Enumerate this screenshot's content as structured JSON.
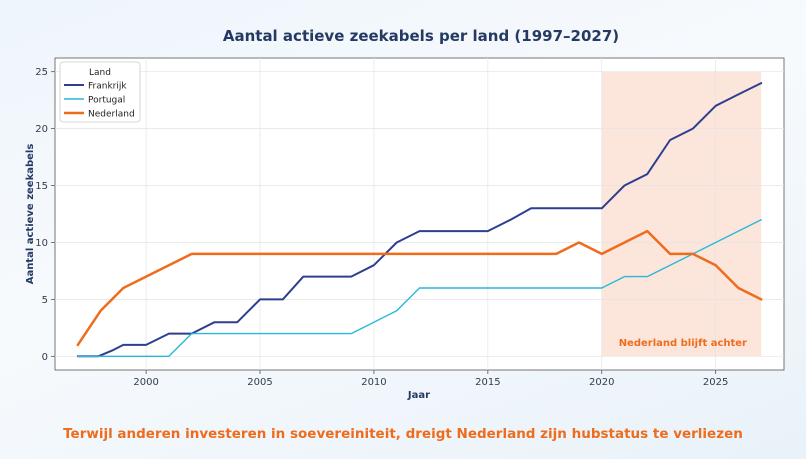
{
  "chart_data": {
    "type": "line",
    "title": "Aantal actieve zeekabels per land (1997–2027)",
    "xlabel": "Jaar",
    "ylabel": "Aantal actieve zeekabels",
    "xlim": [
      1996,
      2028
    ],
    "ylim": [
      -1.2,
      26.2
    ],
    "x_ticks": [
      2000,
      2005,
      2010,
      2015,
      2020,
      2025
    ],
    "y_ticks": [
      0,
      5,
      10,
      15,
      20,
      25
    ],
    "grid": true,
    "legend": {
      "title": "Land",
      "placement": "top-left"
    },
    "series": [
      {
        "name": "Frankrijk",
        "color": "#2e3f8f",
        "x": [
          1997,
          1997.9,
          1998.5,
          1999,
          2000,
          2001,
          2002,
          2003,
          2004,
          2004.5,
          2005,
          2006,
          2006.9,
          2007,
          2009,
          2010,
          2011,
          2012,
          2015,
          2016,
          2016.9,
          2020,
          2020.5,
          2021,
          2022,
          2023,
          2024,
          2025,
          2025.5,
          2026,
          2027
        ],
        "y": [
          0,
          0,
          0.5,
          1,
          1,
          2,
          2,
          3,
          3,
          4,
          5,
          5,
          7,
          7,
          7,
          8,
          10,
          11,
          11,
          12,
          13,
          13,
          14,
          15,
          16,
          19,
          20,
          22,
          22.5,
          23,
          24
        ]
      },
      {
        "name": "Portugal",
        "color": "#29b8d8",
        "x": [
          1997,
          1998,
          2001,
          2001.5,
          2002,
          2003,
          2009,
          2010,
          2011,
          2011.5,
          2012,
          2015,
          2020,
          2021,
          2022,
          2023,
          2024,
          2025,
          2026,
          2027
        ],
        "y": [
          0,
          0,
          0,
          1,
          2,
          2,
          2,
          3,
          4,
          5,
          6,
          6,
          6,
          7,
          7,
          8,
          9,
          10,
          11,
          12
        ]
      },
      {
        "name": "Nederland",
        "color": "#ee6c1c",
        "x": [
          1997,
          1998,
          1999,
          2000,
          2001,
          2002,
          2005,
          2010,
          2015,
          2018,
          2019,
          2020,
          2021,
          2022,
          2022.5,
          2023,
          2024,
          2025,
          2026,
          2027
        ],
        "y": [
          1,
          4,
          6,
          7,
          8,
          9,
          9,
          9,
          9,
          9,
          10,
          9,
          10,
          11,
          10,
          9,
          9,
          8,
          6,
          5
        ]
      }
    ],
    "highlight": {
      "x_range": [
        2020,
        2027
      ],
      "y_range": [
        0,
        25
      ],
      "color": "#fbe2d6",
      "label": "Nederland blijft achter"
    }
  },
  "subtitle": "Terwijl anderen investeren in soevereiniteit, dreigt Nederland zijn hubstatus te verliezen"
}
